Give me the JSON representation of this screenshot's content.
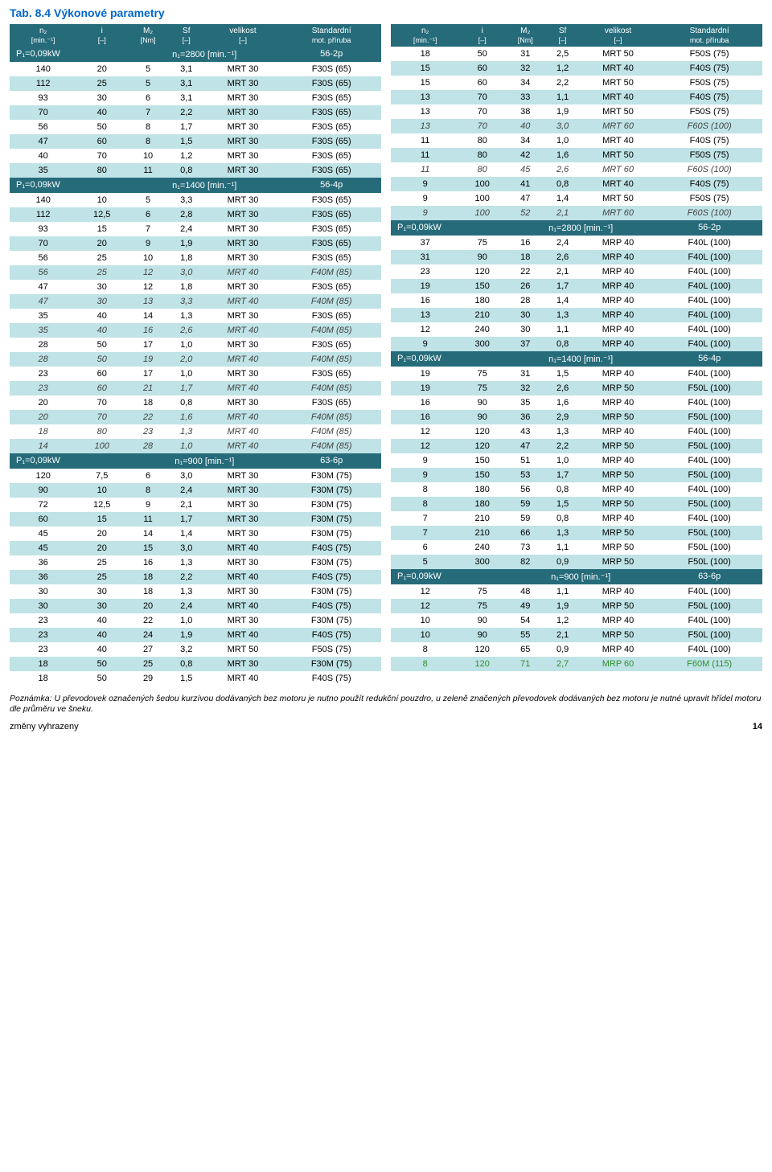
{
  "title": "Tab. 8.4 Výkonové parametry",
  "columns": [
    {
      "label": "n₂",
      "unit": "[min.⁻¹]"
    },
    {
      "label": "i",
      "unit": "[–]"
    },
    {
      "label": "M₂",
      "unit": "[Nm]"
    },
    {
      "label": "Sf",
      "unit": "[–]"
    },
    {
      "label": "velikost",
      "unit": "[–]"
    },
    {
      "label": "Standardní",
      "unit": "mot. příruba"
    }
  ],
  "left": [
    {
      "type": "section",
      "cells": [
        "P₁=0,09kW",
        "n₁=2800 [min.⁻¹]",
        "56-2p"
      ]
    },
    {
      "type": "row",
      "band": "white",
      "style": "normal",
      "cells": [
        "140",
        "20",
        "5",
        "3,1",
        "MRT 30",
        "F30S (65)"
      ]
    },
    {
      "type": "row",
      "band": "teal",
      "style": "normal",
      "cells": [
        "112",
        "25",
        "5",
        "3,1",
        "MRT 30",
        "F30S (65)"
      ]
    },
    {
      "type": "row",
      "band": "white",
      "style": "normal",
      "cells": [
        "93",
        "30",
        "6",
        "3,1",
        "MRT 30",
        "F30S (65)"
      ]
    },
    {
      "type": "row",
      "band": "teal",
      "style": "normal",
      "cells": [
        "70",
        "40",
        "7",
        "2,2",
        "MRT 30",
        "F30S (65)"
      ]
    },
    {
      "type": "row",
      "band": "white",
      "style": "normal",
      "cells": [
        "56",
        "50",
        "8",
        "1,7",
        "MRT 30",
        "F30S (65)"
      ]
    },
    {
      "type": "row",
      "band": "teal",
      "style": "normal",
      "cells": [
        "47",
        "60",
        "8",
        "1,5",
        "MRT 30",
        "F30S (65)"
      ]
    },
    {
      "type": "row",
      "band": "white",
      "style": "normal",
      "cells": [
        "40",
        "70",
        "10",
        "1,2",
        "MRT 30",
        "F30S (65)"
      ]
    },
    {
      "type": "row",
      "band": "teal",
      "style": "normal",
      "cells": [
        "35",
        "80",
        "11",
        "0,8",
        "MRT 30",
        "F30S (65)"
      ]
    },
    {
      "type": "section",
      "cells": [
        "P₁=0,09kW",
        "n₁=1400 [min.⁻¹]",
        "56-4p"
      ]
    },
    {
      "type": "row",
      "band": "white",
      "style": "normal",
      "cells": [
        "140",
        "10",
        "5",
        "3,3",
        "MRT 30",
        "F30S (65)"
      ]
    },
    {
      "type": "row",
      "band": "teal",
      "style": "normal",
      "cells": [
        "112",
        "12,5",
        "6",
        "2,8",
        "MRT 30",
        "F30S (65)"
      ]
    },
    {
      "type": "row",
      "band": "white",
      "style": "normal",
      "cells": [
        "93",
        "15",
        "7",
        "2,4",
        "MRT 30",
        "F30S (65)"
      ]
    },
    {
      "type": "row",
      "band": "teal",
      "style": "normal",
      "cells": [
        "70",
        "20",
        "9",
        "1,9",
        "MRT 30",
        "F30S (65)"
      ]
    },
    {
      "type": "row",
      "band": "white",
      "style": "normal",
      "cells": [
        "56",
        "25",
        "10",
        "1,8",
        "MRT 30",
        "F30S (65)"
      ]
    },
    {
      "type": "row",
      "band": "teal",
      "style": "italic",
      "cells": [
        "56",
        "25",
        "12",
        "3,0",
        "MRT 40",
        "F40M (85)"
      ]
    },
    {
      "type": "row",
      "band": "white",
      "style": "normal",
      "cells": [
        "47",
        "30",
        "12",
        "1,8",
        "MRT 30",
        "F30S (65)"
      ]
    },
    {
      "type": "row",
      "band": "teal",
      "style": "italic",
      "cells": [
        "47",
        "30",
        "13",
        "3,3",
        "MRT 40",
        "F40M (85)"
      ]
    },
    {
      "type": "row",
      "band": "white",
      "style": "normal",
      "cells": [
        "35",
        "40",
        "14",
        "1,3",
        "MRT 30",
        "F30S (65)"
      ]
    },
    {
      "type": "row",
      "band": "teal",
      "style": "italic",
      "cells": [
        "35",
        "40",
        "16",
        "2,6",
        "MRT 40",
        "F40M (85)"
      ]
    },
    {
      "type": "row",
      "band": "white",
      "style": "normal",
      "cells": [
        "28",
        "50",
        "17",
        "1,0",
        "MRT 30",
        "F30S (65)"
      ]
    },
    {
      "type": "row",
      "band": "teal",
      "style": "italic",
      "cells": [
        "28",
        "50",
        "19",
        "2,0",
        "MRT 40",
        "F40M (85)"
      ]
    },
    {
      "type": "row",
      "band": "white",
      "style": "normal",
      "cells": [
        "23",
        "60",
        "17",
        "1,0",
        "MRT 30",
        "F30S (65)"
      ]
    },
    {
      "type": "row",
      "band": "teal",
      "style": "italic",
      "cells": [
        "23",
        "60",
        "21",
        "1,7",
        "MRT 40",
        "F40M (85)"
      ]
    },
    {
      "type": "row",
      "band": "white",
      "style": "normal",
      "cells": [
        "20",
        "70",
        "18",
        "0,8",
        "MRT 30",
        "F30S (65)"
      ]
    },
    {
      "type": "row",
      "band": "teal",
      "style": "italic",
      "cells": [
        "20",
        "70",
        "22",
        "1,6",
        "MRT 40",
        "F40M (85)"
      ]
    },
    {
      "type": "row",
      "band": "white",
      "style": "italic",
      "cells": [
        "18",
        "80",
        "23",
        "1,3",
        "MRT 40",
        "F40M (85)"
      ]
    },
    {
      "type": "row",
      "band": "teal",
      "style": "italic",
      "cells": [
        "14",
        "100",
        "28",
        "1,0",
        "MRT 40",
        "F40M (85)"
      ]
    },
    {
      "type": "section",
      "cells": [
        "P₁=0,09kW",
        "n₁=900 [min.⁻¹]",
        "63-6p"
      ]
    },
    {
      "type": "row",
      "band": "white",
      "style": "normal",
      "cells": [
        "120",
        "7,5",
        "6",
        "3,0",
        "MRT 30",
        "F30M (75)"
      ]
    },
    {
      "type": "row",
      "band": "teal",
      "style": "normal",
      "cells": [
        "90",
        "10",
        "8",
        "2,4",
        "MRT 30",
        "F30M (75)"
      ]
    },
    {
      "type": "row",
      "band": "white",
      "style": "normal",
      "cells": [
        "72",
        "12,5",
        "9",
        "2,1",
        "MRT 30",
        "F30M (75)"
      ]
    },
    {
      "type": "row",
      "band": "teal",
      "style": "normal",
      "cells": [
        "60",
        "15",
        "11",
        "1,7",
        "MRT 30",
        "F30M (75)"
      ]
    },
    {
      "type": "row",
      "band": "white",
      "style": "normal",
      "cells": [
        "45",
        "20",
        "14",
        "1,4",
        "MRT 30",
        "F30M (75)"
      ]
    },
    {
      "type": "row",
      "band": "teal",
      "style": "normal",
      "cells": [
        "45",
        "20",
        "15",
        "3,0",
        "MRT 40",
        "F40S (75)"
      ]
    },
    {
      "type": "row",
      "band": "white",
      "style": "normal",
      "cells": [
        "36",
        "25",
        "16",
        "1,3",
        "MRT 30",
        "F30M (75)"
      ]
    },
    {
      "type": "row",
      "band": "teal",
      "style": "normal",
      "cells": [
        "36",
        "25",
        "18",
        "2,2",
        "MRT 40",
        "F40S (75)"
      ]
    },
    {
      "type": "row",
      "band": "white",
      "style": "normal",
      "cells": [
        "30",
        "30",
        "18",
        "1,3",
        "MRT 30",
        "F30M (75)"
      ]
    },
    {
      "type": "row",
      "band": "teal",
      "style": "normal",
      "cells": [
        "30",
        "30",
        "20",
        "2,4",
        "MRT 40",
        "F40S (75)"
      ]
    },
    {
      "type": "row",
      "band": "white",
      "style": "normal",
      "cells": [
        "23",
        "40",
        "22",
        "1,0",
        "MRT 30",
        "F30M (75)"
      ]
    },
    {
      "type": "row",
      "band": "teal",
      "style": "normal",
      "cells": [
        "23",
        "40",
        "24",
        "1,9",
        "MRT 40",
        "F40S (75)"
      ]
    },
    {
      "type": "row",
      "band": "white",
      "style": "normal",
      "cells": [
        "23",
        "40",
        "27",
        "3,2",
        "MRT 50",
        "F50S (75)"
      ]
    },
    {
      "type": "row",
      "band": "teal",
      "style": "normal",
      "cells": [
        "18",
        "50",
        "25",
        "0,8",
        "MRT 30",
        "F30M (75)"
      ]
    },
    {
      "type": "row",
      "band": "white",
      "style": "normal",
      "cells": [
        "18",
        "50",
        "29",
        "1,5",
        "MRT 40",
        "F40S (75)"
      ]
    }
  ],
  "right": [
    {
      "type": "row",
      "band": "white",
      "style": "normal",
      "cells": [
        "18",
        "50",
        "31",
        "2,5",
        "MRT 50",
        "F50S (75)"
      ]
    },
    {
      "type": "row",
      "band": "teal",
      "style": "normal",
      "cells": [
        "15",
        "60",
        "32",
        "1,2",
        "MRT 40",
        "F40S (75)"
      ]
    },
    {
      "type": "row",
      "band": "white",
      "style": "normal",
      "cells": [
        "15",
        "60",
        "34",
        "2,2",
        "MRT 50",
        "F50S (75)"
      ]
    },
    {
      "type": "row",
      "band": "teal",
      "style": "normal",
      "cells": [
        "13",
        "70",
        "33",
        "1,1",
        "MRT 40",
        "F40S (75)"
      ]
    },
    {
      "type": "row",
      "band": "white",
      "style": "normal",
      "cells": [
        "13",
        "70",
        "38",
        "1,9",
        "MRT 50",
        "F50S (75)"
      ]
    },
    {
      "type": "row",
      "band": "teal",
      "style": "italic",
      "cells": [
        "13",
        "70",
        "40",
        "3,0",
        "MRT 60",
        "F60S (100)"
      ]
    },
    {
      "type": "row",
      "band": "white",
      "style": "normal",
      "cells": [
        "11",
        "80",
        "34",
        "1,0",
        "MRT 40",
        "F40S (75)"
      ]
    },
    {
      "type": "row",
      "band": "teal",
      "style": "normal",
      "cells": [
        "11",
        "80",
        "42",
        "1,6",
        "MRT 50",
        "F50S (75)"
      ]
    },
    {
      "type": "row",
      "band": "white",
      "style": "italic",
      "cells": [
        "11",
        "80",
        "45",
        "2,6",
        "MRT 60",
        "F60S (100)"
      ]
    },
    {
      "type": "row",
      "band": "teal",
      "style": "normal",
      "cells": [
        "9",
        "100",
        "41",
        "0,8",
        "MRT 40",
        "F40S (75)"
      ]
    },
    {
      "type": "row",
      "band": "white",
      "style": "normal",
      "cells": [
        "9",
        "100",
        "47",
        "1,4",
        "MRT 50",
        "F50S (75)"
      ]
    },
    {
      "type": "row",
      "band": "teal",
      "style": "italic",
      "cells": [
        "9",
        "100",
        "52",
        "2,1",
        "MRT 60",
        "F60S (100)"
      ]
    },
    {
      "type": "section",
      "cells": [
        "P₁=0,09kW",
        "n₁=2800 [min.⁻¹]",
        "56-2p"
      ]
    },
    {
      "type": "row",
      "band": "white",
      "style": "normal",
      "cells": [
        "37",
        "75",
        "16",
        "2,4",
        "MRP 40",
        "F40L (100)"
      ]
    },
    {
      "type": "row",
      "band": "teal",
      "style": "normal",
      "cells": [
        "31",
        "90",
        "18",
        "2,6",
        "MRP 40",
        "F40L (100)"
      ]
    },
    {
      "type": "row",
      "band": "white",
      "style": "normal",
      "cells": [
        "23",
        "120",
        "22",
        "2,1",
        "MRP 40",
        "F40L (100)"
      ]
    },
    {
      "type": "row",
      "band": "teal",
      "style": "normal",
      "cells": [
        "19",
        "150",
        "26",
        "1,7",
        "MRP 40",
        "F40L (100)"
      ]
    },
    {
      "type": "row",
      "band": "white",
      "style": "normal",
      "cells": [
        "16",
        "180",
        "28",
        "1,4",
        "MRP 40",
        "F40L (100)"
      ]
    },
    {
      "type": "row",
      "band": "teal",
      "style": "normal",
      "cells": [
        "13",
        "210",
        "30",
        "1,3",
        "MRP 40",
        "F40L (100)"
      ]
    },
    {
      "type": "row",
      "band": "white",
      "style": "normal",
      "cells": [
        "12",
        "240",
        "30",
        "1,1",
        "MRP 40",
        "F40L (100)"
      ]
    },
    {
      "type": "row",
      "band": "teal",
      "style": "normal",
      "cells": [
        "9",
        "300",
        "37",
        "0,8",
        "MRP 40",
        "F40L (100)"
      ]
    },
    {
      "type": "section",
      "cells": [
        "P₁=0,09kW",
        "n₁=1400 [min.⁻¹]",
        "56-4p"
      ]
    },
    {
      "type": "row",
      "band": "white",
      "style": "normal",
      "cells": [
        "19",
        "75",
        "31",
        "1,5",
        "MRP 40",
        "F40L (100)"
      ]
    },
    {
      "type": "row",
      "band": "teal",
      "style": "normal",
      "cells": [
        "19",
        "75",
        "32",
        "2,6",
        "MRP 50",
        "F50L (100)"
      ]
    },
    {
      "type": "row",
      "band": "white",
      "style": "normal",
      "cells": [
        "16",
        "90",
        "35",
        "1,6",
        "MRP 40",
        "F40L (100)"
      ]
    },
    {
      "type": "row",
      "band": "teal",
      "style": "normal",
      "cells": [
        "16",
        "90",
        "36",
        "2,9",
        "MRP 50",
        "F50L (100)"
      ]
    },
    {
      "type": "row",
      "band": "white",
      "style": "normal",
      "cells": [
        "12",
        "120",
        "43",
        "1,3",
        "MRP 40",
        "F40L (100)"
      ]
    },
    {
      "type": "row",
      "band": "teal",
      "style": "normal",
      "cells": [
        "12",
        "120",
        "47",
        "2,2",
        "MRP 50",
        "F50L (100)"
      ]
    },
    {
      "type": "row",
      "band": "white",
      "style": "normal",
      "cells": [
        "9",
        "150",
        "51",
        "1,0",
        "MRP 40",
        "F40L (100)"
      ]
    },
    {
      "type": "row",
      "band": "teal",
      "style": "normal",
      "cells": [
        "9",
        "150",
        "53",
        "1,7",
        "MRP 50",
        "F50L (100)"
      ]
    },
    {
      "type": "row",
      "band": "white",
      "style": "normal",
      "cells": [
        "8",
        "180",
        "56",
        "0,8",
        "MRP 40",
        "F40L (100)"
      ]
    },
    {
      "type": "row",
      "band": "teal",
      "style": "normal",
      "cells": [
        "8",
        "180",
        "59",
        "1,5",
        "MRP 50",
        "F50L (100)"
      ]
    },
    {
      "type": "row",
      "band": "white",
      "style": "normal",
      "cells": [
        "7",
        "210",
        "59",
        "0,8",
        "MRP 40",
        "F40L (100)"
      ]
    },
    {
      "type": "row",
      "band": "teal",
      "style": "normal",
      "cells": [
        "7",
        "210",
        "66",
        "1,3",
        "MRP 50",
        "F50L (100)"
      ]
    },
    {
      "type": "row",
      "band": "white",
      "style": "normal",
      "cells": [
        "6",
        "240",
        "73",
        "1,1",
        "MRP 50",
        "F50L (100)"
      ]
    },
    {
      "type": "row",
      "band": "teal",
      "style": "normal",
      "cells": [
        "5",
        "300",
        "82",
        "0,9",
        "MRP 50",
        "F50L (100)"
      ]
    },
    {
      "type": "section",
      "cells": [
        "P₁=0,09kW",
        "n₁=900 [min.⁻¹]",
        "63-6p"
      ]
    },
    {
      "type": "row",
      "band": "white",
      "style": "normal",
      "cells": [
        "12",
        "75",
        "48",
        "1,1",
        "MRP 40",
        "F40L (100)"
      ]
    },
    {
      "type": "row",
      "band": "teal",
      "style": "normal",
      "cells": [
        "12",
        "75",
        "49",
        "1,9",
        "MRP 50",
        "F50L (100)"
      ]
    },
    {
      "type": "row",
      "band": "white",
      "style": "normal",
      "cells": [
        "10",
        "90",
        "54",
        "1,2",
        "MRP 40",
        "F40L (100)"
      ]
    },
    {
      "type": "row",
      "band": "teal",
      "style": "normal",
      "cells": [
        "10",
        "90",
        "55",
        "2,1",
        "MRP 50",
        "F50L (100)"
      ]
    },
    {
      "type": "row",
      "band": "white",
      "style": "normal",
      "cells": [
        "8",
        "120",
        "65",
        "0,9",
        "MRP 40",
        "F40L (100)"
      ]
    },
    {
      "type": "row",
      "band": "teal",
      "style": "green",
      "cells": [
        "8",
        "120",
        "71",
        "2,7",
        "MRP 60",
        "F60M (115)"
      ]
    }
  ],
  "footnote": "Poznámka: U převodovek označených šedou kurzívou dodávaných bez motoru je nutno použít redukční pouzdro, u zeleně značených převodovek dodávaných bez motoru je nutné upravit hřídel motoru dle průměru ve šneku.",
  "footer_left": "změny vyhrazeny",
  "footer_page": "14",
  "colors": {
    "header_bg": "#266b7a",
    "header_fg": "#ffffff",
    "band_teal": "#bfe3e6",
    "band_white": "#ffffff",
    "title_color": "#0066cc",
    "italic_text": "#444444",
    "green_text": "#2f8f2f"
  }
}
